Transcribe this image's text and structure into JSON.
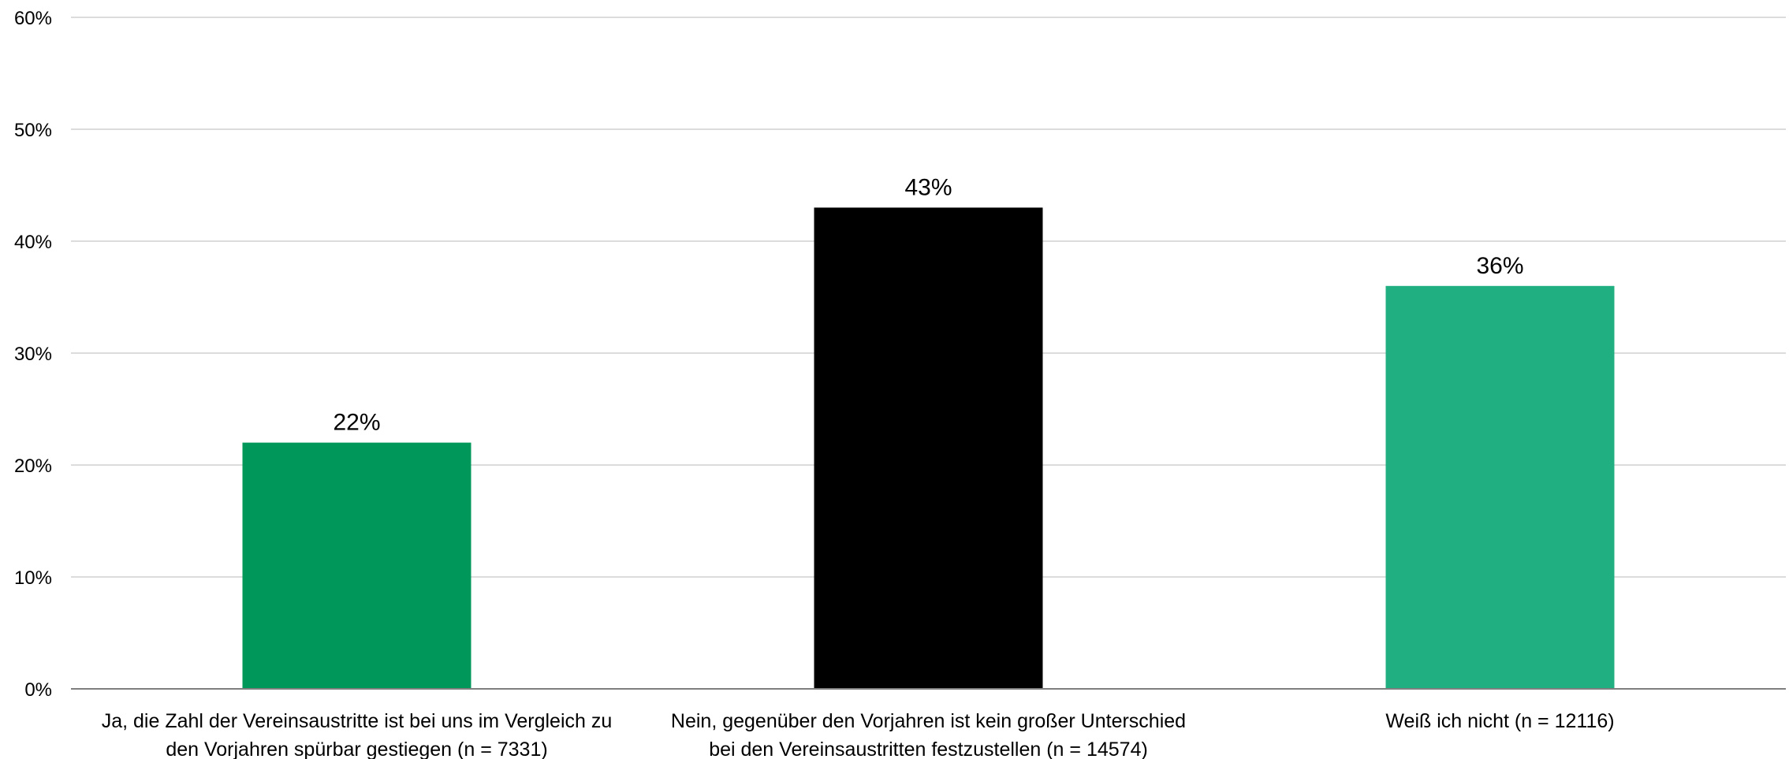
{
  "chart_data": {
    "type": "bar",
    "categories": [
      [
        "Ja, die Zahl der Vereinsaustritte ist bei uns im Vergleich zu",
        "den Vorjahren spürbar gestiegen (n = 7331)"
      ],
      [
        "Nein, gegenüber den Vorjahren ist kein großer Unterschied",
        "bei den Vereinsaustritten festzustellen (n = 14574)"
      ],
      [
        "Weiß ich nicht (n = 12116)"
      ]
    ],
    "values": [
      22,
      43,
      36
    ],
    "value_labels": [
      "22%",
      "43%",
      "36%"
    ],
    "bar_colors": [
      "#00985a",
      "#000000",
      "#20af80"
    ],
    "ylim": [
      0,
      60
    ],
    "yticks": [
      0,
      10,
      20,
      30,
      40,
      50,
      60
    ],
    "ytick_labels": [
      "0%",
      "10%",
      "20%",
      "30%",
      "40%",
      "50%",
      "60%"
    ],
    "grid": true,
    "title": "",
    "xlabel": "",
    "ylabel": ""
  }
}
